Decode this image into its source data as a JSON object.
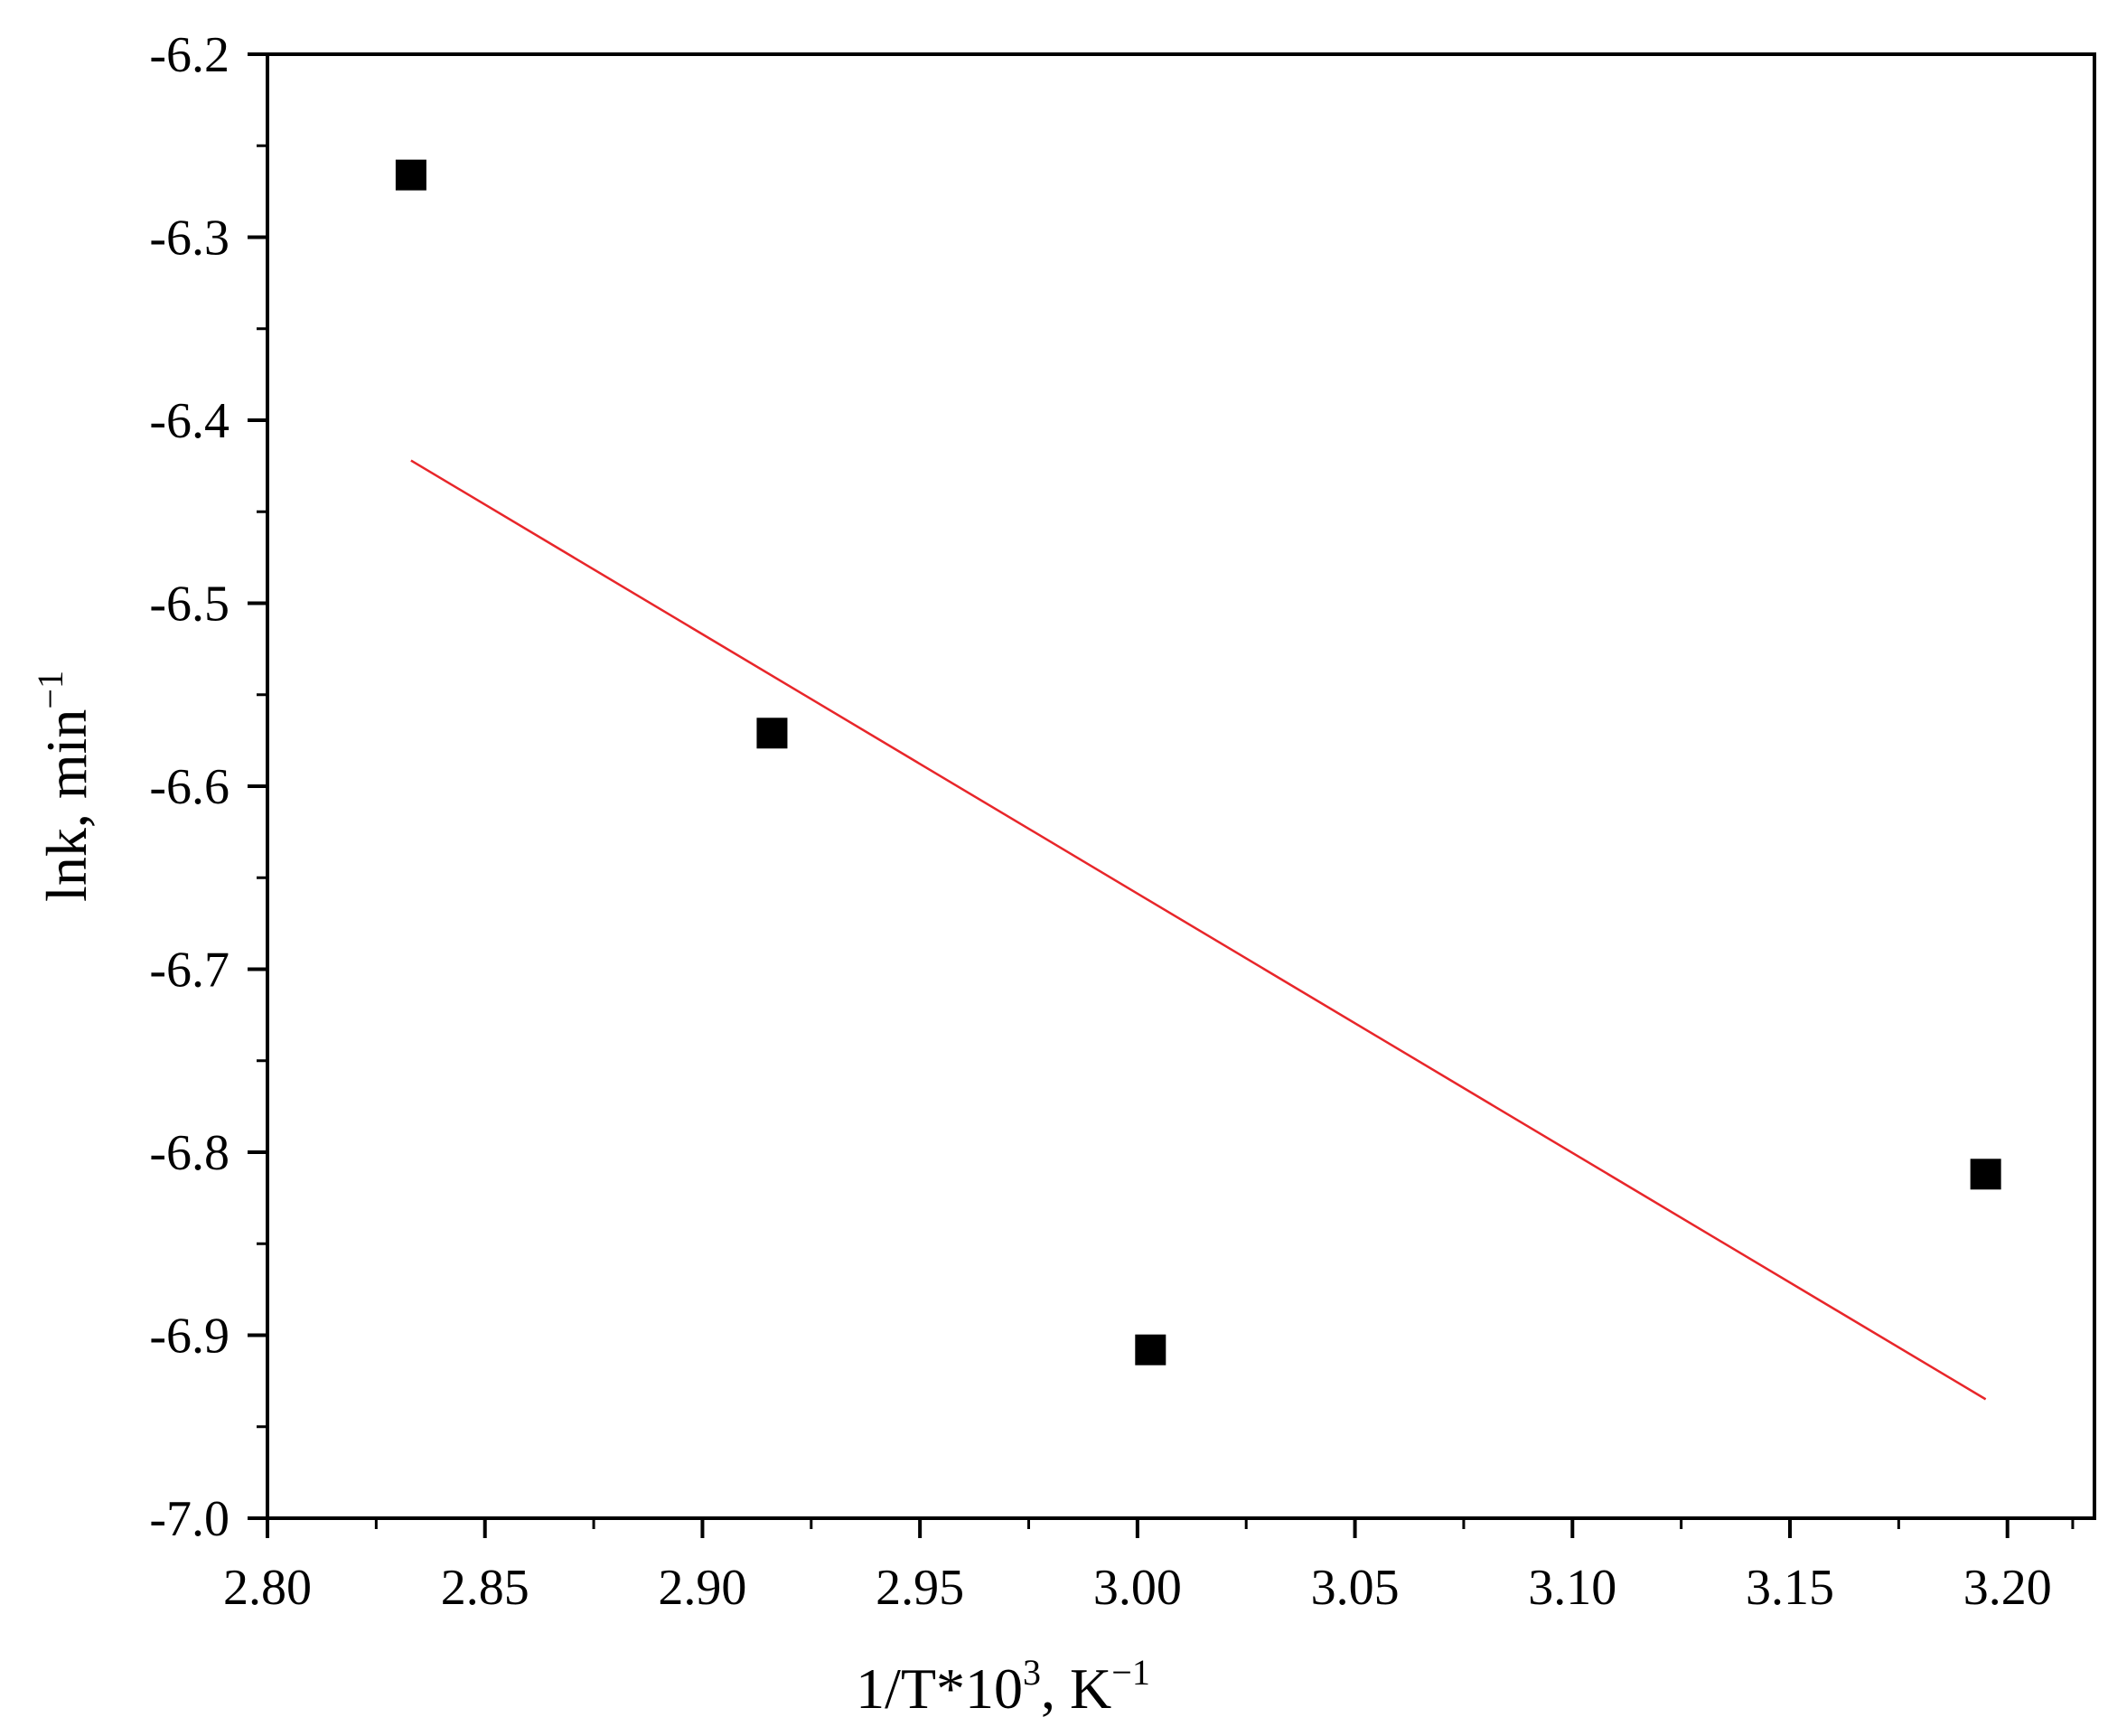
{
  "chart_data": {
    "type": "scatter",
    "xlabel": {
      "base": "1/T*10",
      "exponent": "3",
      "suffix": ", K",
      "unit_exponent": "−1"
    },
    "ylabel": {
      "base": "lnk, min",
      "unit_exponent": "−1"
    },
    "xlim": [
      2.8,
      3.22
    ],
    "ylim": [
      -7.0,
      -6.2
    ],
    "x_ticks": [
      "2.80",
      "2.85",
      "2.90",
      "2.95",
      "3.00",
      "3.05",
      "3.10",
      "3.15",
      "3.20"
    ],
    "x_tick_values": [
      2.8,
      2.85,
      2.9,
      2.95,
      3.0,
      3.05,
      3.1,
      3.15,
      3.2
    ],
    "x_minor_tick_values": [
      2.825,
      2.875,
      2.925,
      2.975,
      3.025,
      3.075,
      3.125,
      3.175,
      3.215
    ],
    "y_ticks": [
      "-6.2",
      "-6.3",
      "-6.4",
      "-6.5",
      "-6.6",
      "-6.7",
      "-6.8",
      "-6.9",
      "-7.0"
    ],
    "y_tick_values": [
      -6.2,
      -6.3,
      -6.4,
      -6.5,
      -6.6,
      -6.7,
      -6.8,
      -6.9,
      -7.0
    ],
    "y_minor_tick_values": [
      -6.25,
      -6.35,
      -6.45,
      -6.55,
      -6.65,
      -6.75,
      -6.85,
      -6.95
    ],
    "grid": false,
    "legend": "none",
    "series": [
      {
        "kind": "scatter",
        "marker": "square",
        "color": "#000000",
        "x": [
          2.833,
          2.916,
          3.003,
          3.195
        ],
        "y": [
          -6.266,
          -6.571,
          -6.908,
          -6.812
        ]
      },
      {
        "kind": "line",
        "color": "#e8262a",
        "x": [
          2.833,
          3.195
        ],
        "y": [
          -6.422,
          -6.935
        ]
      }
    ]
  }
}
